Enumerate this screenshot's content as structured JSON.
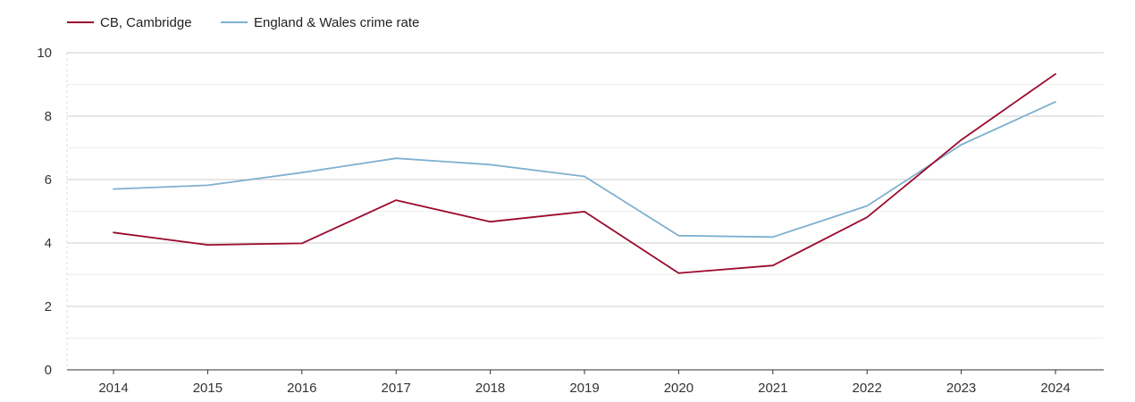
{
  "chart_data": {
    "type": "line",
    "categories": [
      "2014",
      "2015",
      "2016",
      "2017",
      "2018",
      "2019",
      "2020",
      "2021",
      "2022",
      "2023",
      "2024"
    ],
    "series": [
      {
        "name": "CB, Cambridge",
        "color": "#9b0a2c",
        "values": [
          4.33,
          3.94,
          3.99,
          5.35,
          4.67,
          4.99,
          3.05,
          3.29,
          4.81,
          7.25,
          9.33
        ]
      },
      {
        "name": "England & Wales crime rate",
        "color": "#7fb0d0",
        "values": [
          5.7,
          5.82,
          6.22,
          6.67,
          6.47,
          6.1,
          4.23,
          4.19,
          5.17,
          7.1,
          8.45
        ]
      }
    ],
    "yticks": [
      0,
      2,
      4,
      6,
      8,
      10
    ],
    "ylim": [
      0,
      10
    ],
    "grid": true,
    "legend_position": "top-left"
  }
}
